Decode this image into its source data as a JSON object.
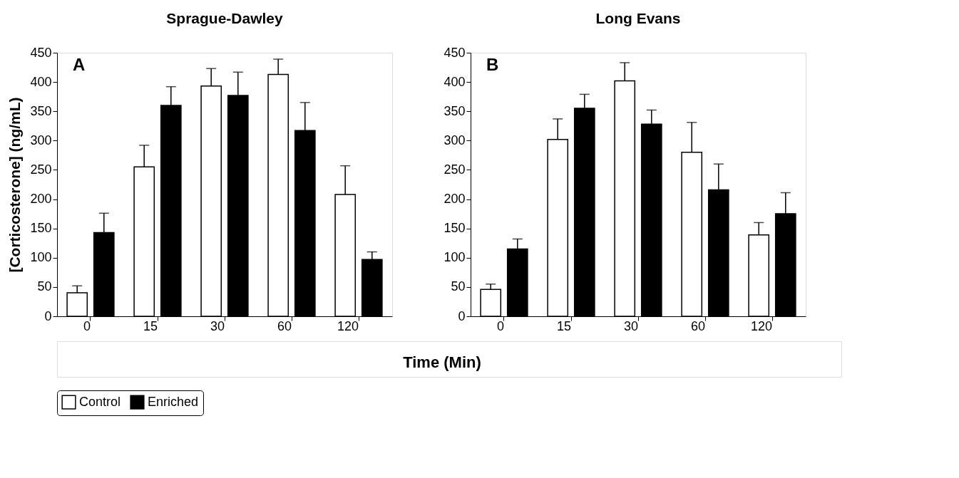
{
  "chart_data": [
    {
      "type": "bar",
      "title": "Sprague-Dawley",
      "ylabel": "[Corticosterone] (ng/mL)",
      "xlabel": "Time (Min)",
      "annotations": [
        "A"
      ],
      "categories": [
        "0",
        "15",
        "30",
        "60",
        "120"
      ],
      "ylim": [
        0,
        450
      ],
      "yticks": [
        0,
        50,
        100,
        150,
        200,
        250,
        300,
        350,
        400,
        450
      ],
      "grid": false,
      "legend": "bottom",
      "series": [
        {
          "name": "Control",
          "color": "#ffffff",
          "values": [
            40,
            255,
            393,
            413,
            208
          ],
          "errors": [
            [
              40,
              52
            ],
            [
              255,
              292
            ],
            [
              393,
              423
            ],
            [
              413,
              439
            ],
            [
              208,
              257
            ]
          ]
        },
        {
          "name": "Enriched",
          "color": "#000000",
          "values": [
            143,
            360,
            377,
            317,
            97
          ],
          "errors": [
            [
              143,
              176
            ],
            [
              360,
              392
            ],
            [
              377,
              417
            ],
            [
              317,
              365
            ],
            [
              97,
              110
            ]
          ]
        }
      ]
    },
    {
      "type": "bar",
      "title": "Long Evans",
      "annotations": [
        "B"
      ],
      "categories": [
        "0",
        "15",
        "30",
        "60",
        "120"
      ],
      "ylim": [
        0,
        450
      ],
      "yticks": [
        0,
        50,
        100,
        150,
        200,
        250,
        300,
        350,
        400,
        450
      ],
      "grid": false,
      "series": [
        {
          "name": "Control",
          "color": "#ffffff",
          "values": [
            46,
            302,
            402,
            280,
            139
          ],
          "errors": [
            [
              46,
              55
            ],
            [
              302,
              337
            ],
            [
              402,
              433
            ],
            [
              280,
              331
            ],
            [
              139,
              160
            ]
          ]
        },
        {
          "name": "Enriched",
          "color": "#000000",
          "values": [
            115,
            355,
            328,
            216,
            175
          ],
          "errors": [
            [
              115,
              132
            ],
            [
              355,
              379
            ],
            [
              328,
              352
            ],
            [
              216,
              260
            ],
            [
              175,
              211
            ]
          ]
        }
      ]
    }
  ]
}
